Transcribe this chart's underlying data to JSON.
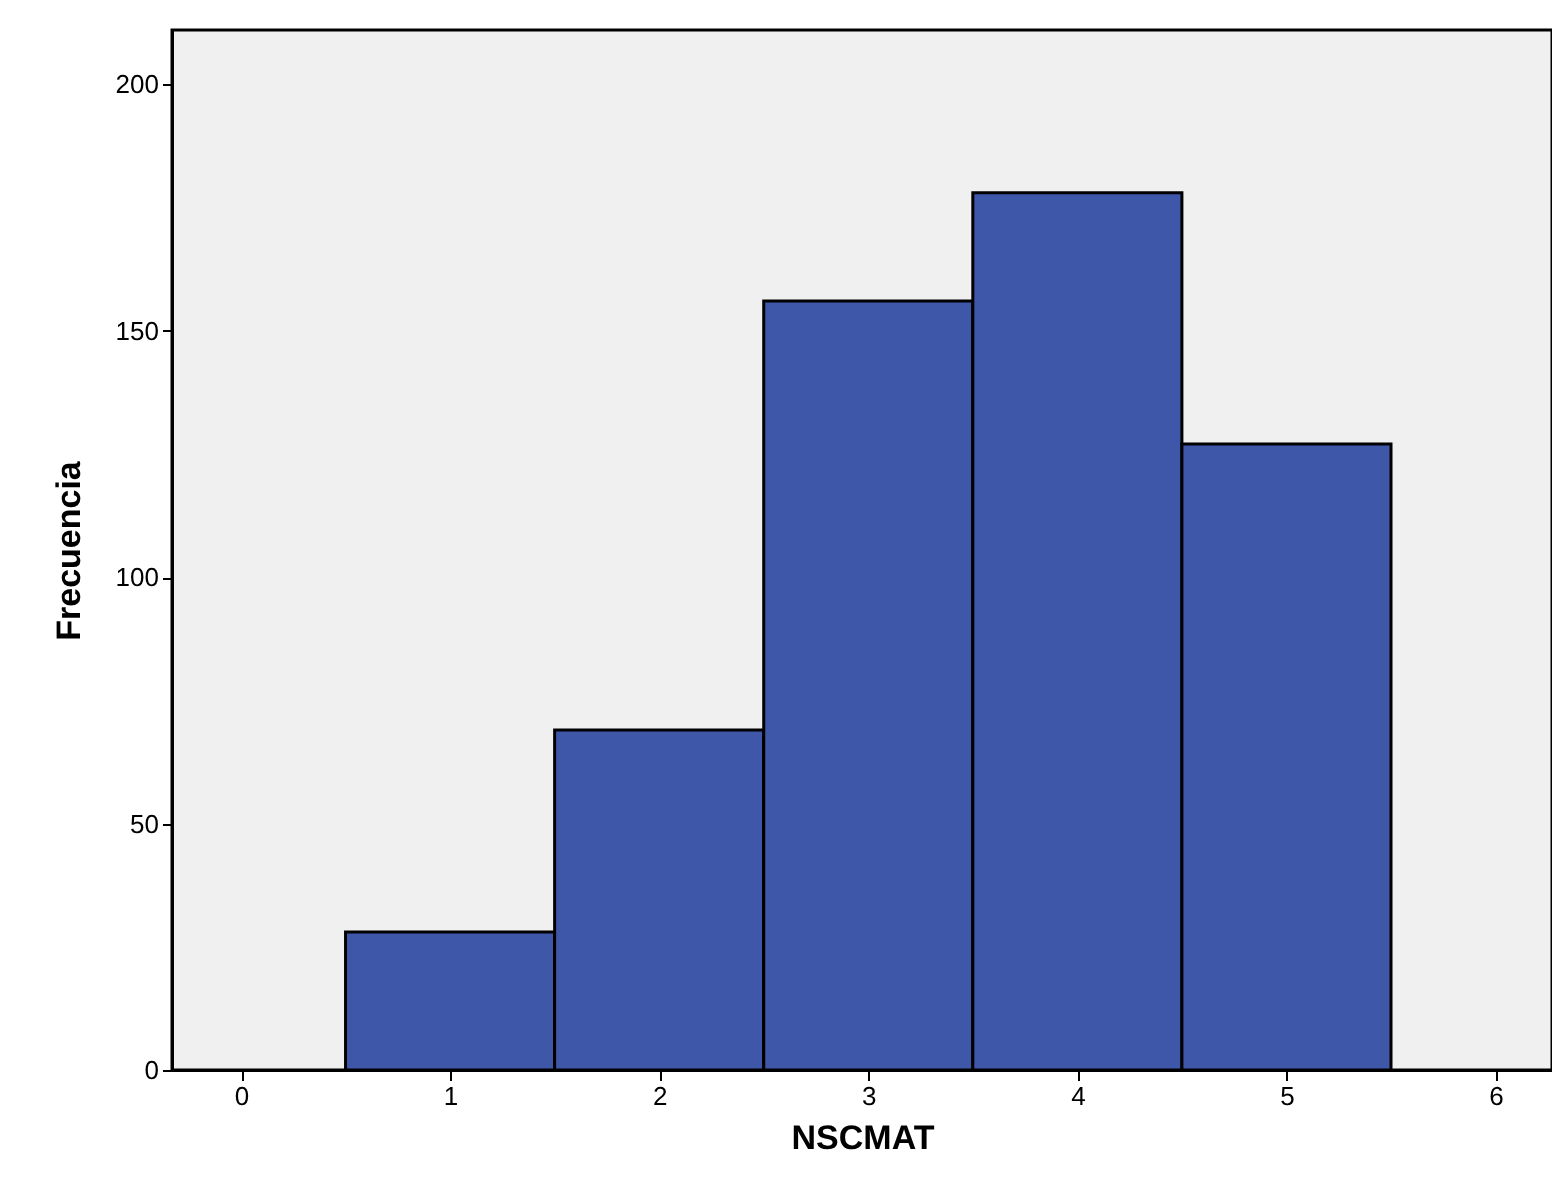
{
  "chart_data": {
    "type": "histogram",
    "xlabel": "NSCMAT",
    "ylabel": "Frecuencia",
    "bins": [
      0.5,
      1.5,
      2.5,
      3.5,
      4.5,
      5.5
    ],
    "values": [
      28,
      69,
      156,
      178,
      127
    ],
    "color": "#3f57a8",
    "xlim": [
      -0.33,
      6.27
    ],
    "xticks": [
      0,
      1,
      2,
      3,
      4,
      5,
      6
    ],
    "ylim": [
      0,
      211
    ],
    "yticks": [
      0,
      50,
      100,
      150,
      200
    ],
    "grid": false
  }
}
